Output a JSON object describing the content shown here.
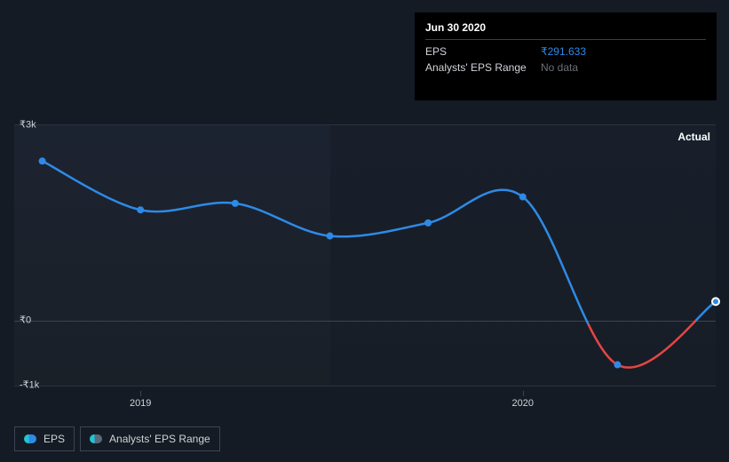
{
  "tooltip": {
    "title": "Jun 30 2020",
    "rows": [
      {
        "label": "EPS",
        "value": "₹291.633",
        "kind": "value"
      },
      {
        "label": "Analysts' EPS Range",
        "value": "No data",
        "kind": "nodata"
      }
    ]
  },
  "chart": {
    "type": "line",
    "ymin": -1000,
    "ymax": 3000,
    "yticks": [
      {
        "v": 3000,
        "label": "₹3k"
      },
      {
        "v": 0,
        "label": "₹0"
      },
      {
        "v": -1000,
        "label": "-₹1k"
      }
    ],
    "background_color_left": "#1c2330",
    "background_color_right": "#181f2a",
    "grid_color": "#2a3240",
    "zero_line_color": "#3a4454",
    "actual_label": "Actual",
    "split_ratio": 0.45,
    "xticks": [
      {
        "t": 0.18,
        "label": "2019"
      },
      {
        "t": 0.725,
        "label": "2020"
      }
    ],
    "series_eps": {
      "color_normal": "#2e8ae6",
      "color_negative": "#e64545",
      "line_width": 2.5,
      "marker_fill": "#2e8ae6",
      "marker_stroke": "#ffffff",
      "marker_radius": 4,
      "points": [
        {
          "t": 0.04,
          "v": 2450
        },
        {
          "t": 0.18,
          "v": 1700
        },
        {
          "t": 0.315,
          "v": 1800
        },
        {
          "t": 0.45,
          "v": 1300
        },
        {
          "t": 0.59,
          "v": 1500
        },
        {
          "t": 0.725,
          "v": 1900
        },
        {
          "t": 0.86,
          "v": -680
        },
        {
          "t": 1.0,
          "v": 291.633
        }
      ]
    }
  },
  "legend": {
    "items": [
      {
        "key": "eps",
        "label": "EPS"
      },
      {
        "key": "range",
        "label": "Analysts' EPS Range"
      }
    ]
  }
}
